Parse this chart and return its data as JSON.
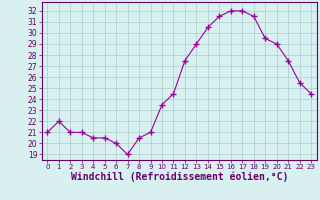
{
  "x": [
    0,
    1,
    2,
    3,
    4,
    5,
    6,
    7,
    8,
    9,
    10,
    11,
    12,
    13,
    14,
    15,
    16,
    17,
    18,
    19,
    20,
    21,
    22,
    23
  ],
  "y": [
    21,
    22,
    21,
    21,
    20.5,
    20.5,
    20,
    19,
    20.5,
    21,
    23.5,
    24.5,
    27.5,
    29,
    30.5,
    31.5,
    32,
    32,
    31.5,
    29.5,
    29,
    27.5,
    25.5,
    24.5
  ],
  "line_color": "#990099",
  "marker": "+",
  "marker_size": 5,
  "bg_color": "#d8f0f0",
  "grid_color": "#aacccc",
  "axis_color": "#660066",
  "tick_color": "#660066",
  "xlabel": "Windchill (Refroidissement éolien,°C)",
  "xlabel_fontsize": 7,
  "yticks": [
    19,
    20,
    21,
    22,
    23,
    24,
    25,
    26,
    27,
    28,
    29,
    30,
    31,
    32
  ],
  "ylim": [
    18.5,
    32.8
  ],
  "xlim": [
    -0.5,
    23.5
  ],
  "xtick_labels": [
    "0",
    "1",
    "2",
    "3",
    "4",
    "5",
    "6",
    "7",
    "8",
    "9",
    "10",
    "11",
    "12",
    "13",
    "14",
    "15",
    "16",
    "17",
    "18",
    "19",
    "20",
    "21",
    "22",
    "23"
  ]
}
